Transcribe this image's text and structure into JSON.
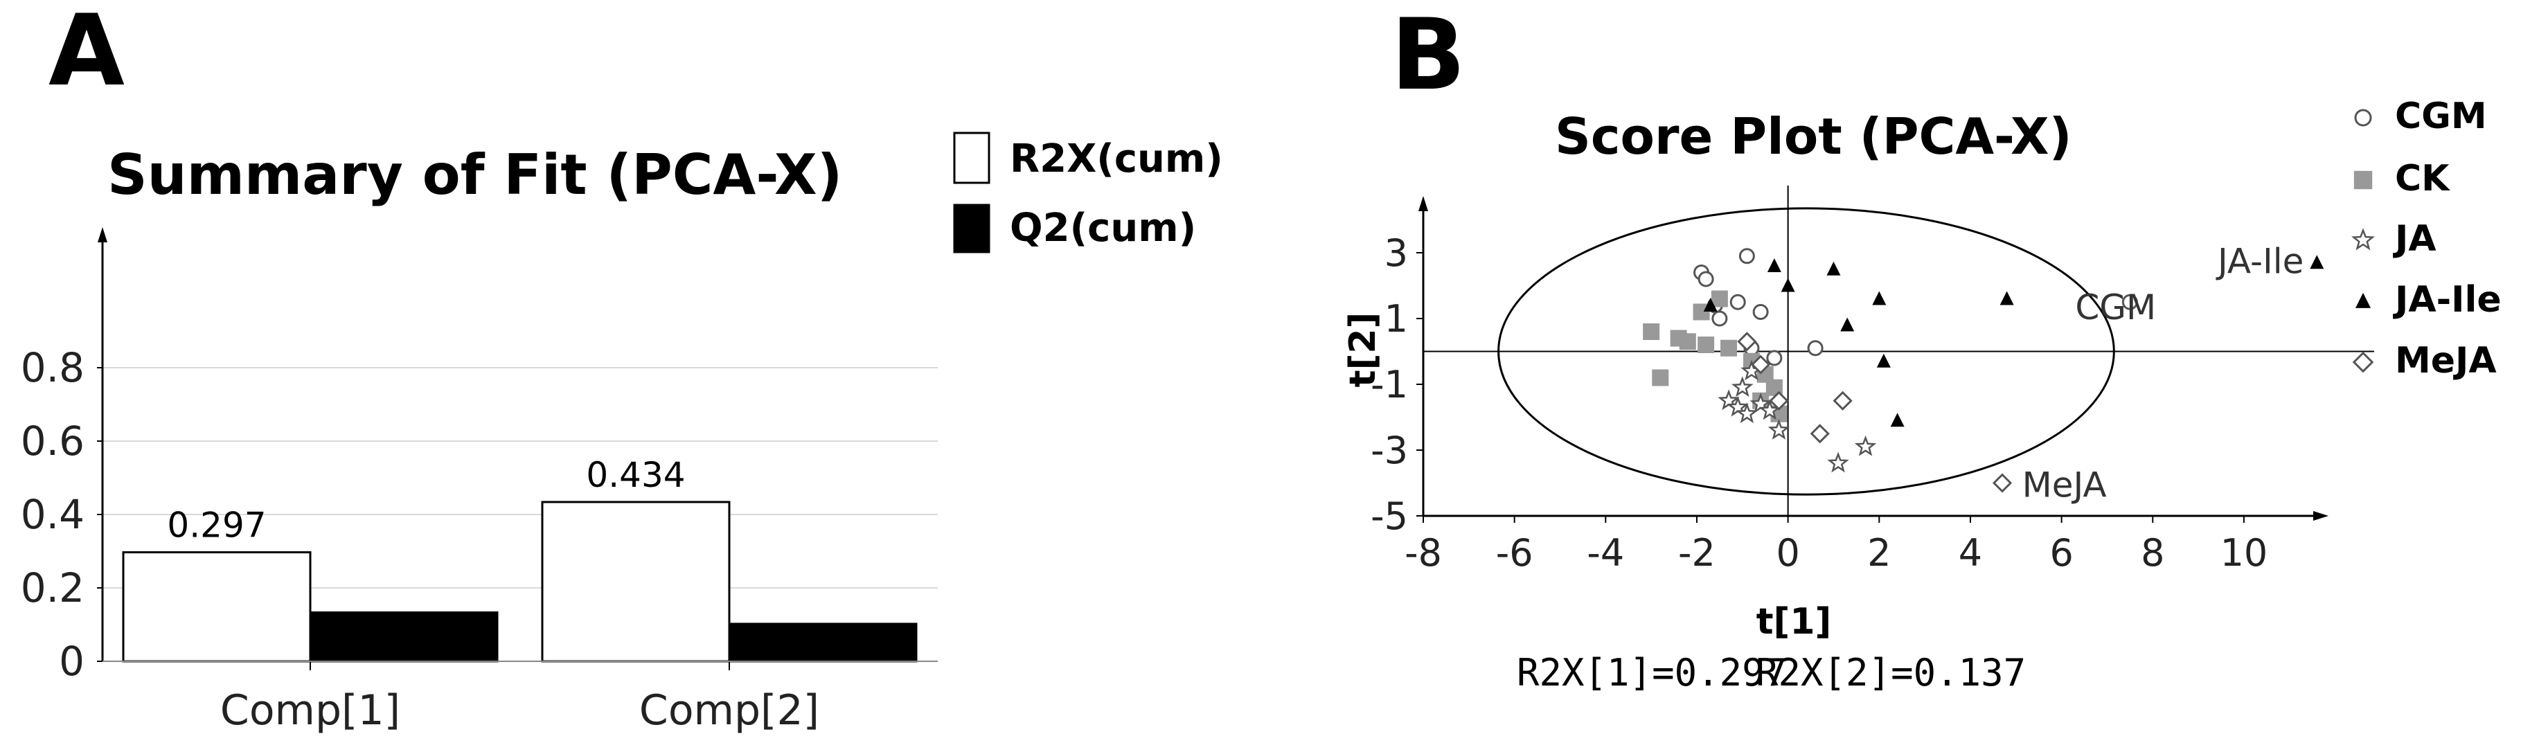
{
  "panels": {
    "a": {
      "letter": "A"
    },
    "b": {
      "letter": "B"
    }
  },
  "chart_data": [
    {
      "type": "bar",
      "title": "Summary of Fit (PCA-X)",
      "categories": [
        "Comp[1]",
        "Comp[2]"
      ],
      "series": [
        {
          "name": "R2X(cum)",
          "values": [
            0.297,
            0.434
          ],
          "color": "#ffffff"
        },
        {
          "name": "Q2(cum)",
          "values": [
            0.133,
            0.102
          ],
          "color": "#000000"
        }
      ],
      "data_labels": [
        "0.297",
        "0.434"
      ],
      "ylim": [
        0,
        1.0
      ],
      "yticks": [
        "0",
        "0.2",
        "0.4",
        "0.6",
        "0.8"
      ],
      "xlabel": "",
      "ylabel": "",
      "grid": "horizontal",
      "legend": "top-right"
    },
    {
      "type": "scatter",
      "title": "Score Plot (PCA-X)",
      "xlabel": "t[1]",
      "ylabel": "t[2]",
      "xlim": [
        -8,
        12
      ],
      "ylim": [
        -5,
        5
      ],
      "xticks": [
        "-8",
        "-6",
        "-4",
        "-2",
        "0",
        "2",
        "4",
        "6",
        "8",
        "10"
      ],
      "yticks": [
        "3",
        "1",
        "-1",
        "-3",
        "-5"
      ],
      "grid": "none",
      "legend": "right",
      "ellipse": {
        "cx": 0.4,
        "cy": 0,
        "rx": 6.75,
        "ry": 4.35
      },
      "footer": [
        "R2X[1]=0.297",
        "R2X[2]=0.137"
      ],
      "annotations": [
        {
          "text": "JA-Ile",
          "x": 11.8,
          "y": 2.8
        },
        {
          "text": "CGM",
          "x": 7.6,
          "y": 1.4
        },
        {
          "text": "MeJA",
          "x": 4.8,
          "y": -4.0
        }
      ],
      "series": [
        {
          "name": "CGM",
          "marker": "circle",
          "color": "#555555",
          "points": [
            [
              -1.9,
              2.4
            ],
            [
              -1.8,
              2.2
            ],
            [
              -0.9,
              2.9
            ],
            [
              -1.6,
              1.4
            ],
            [
              -1.5,
              1.0
            ],
            [
              -1.1,
              1.5
            ],
            [
              -0.6,
              1.2
            ],
            [
              -0.8,
              0.1
            ],
            [
              -0.3,
              -0.2
            ],
            [
              0.6,
              0.1
            ],
            [
              7.5,
              1.5
            ]
          ]
        },
        {
          "name": "CK",
          "marker": "square",
          "color": "#999999",
          "points": [
            [
              -3.0,
              0.6
            ],
            [
              -2.8,
              -0.8
            ],
            [
              -2.4,
              0.4
            ],
            [
              -2.2,
              0.3
            ],
            [
              -1.9,
              1.2
            ],
            [
              -1.5,
              1.6
            ],
            [
              -1.3,
              0.1
            ],
            [
              -0.8,
              -0.3
            ],
            [
              -0.5,
              -0.7
            ],
            [
              -0.3,
              -1.1
            ],
            [
              -0.6,
              -1.5
            ],
            [
              -0.2,
              -1.9
            ],
            [
              -1.8,
              0.2
            ]
          ]
        },
        {
          "name": "JA",
          "marker": "star",
          "color": "#555555",
          "points": [
            [
              -1.0,
              -1.1
            ],
            [
              -1.3,
              -1.5
            ],
            [
              -1.1,
              -1.7
            ],
            [
              -0.9,
              -1.9
            ],
            [
              -0.6,
              -1.6
            ],
            [
              -0.4,
              -1.8
            ],
            [
              -0.2,
              -2.4
            ],
            [
              1.1,
              -3.4
            ],
            [
              1.7,
              -2.9
            ],
            [
              -0.8,
              -0.6
            ]
          ]
        },
        {
          "name": "JA-Ile",
          "marker": "triangle",
          "color": "#000000",
          "points": [
            [
              -0.3,
              2.6
            ],
            [
              0.0,
              2.0
            ],
            [
              -1.7,
              1.4
            ],
            [
              1.0,
              2.5
            ],
            [
              2.0,
              1.6
            ],
            [
              1.3,
              0.8
            ],
            [
              2.1,
              -0.3
            ],
            [
              2.4,
              -2.1
            ],
            [
              4.8,
              1.6
            ],
            [
              11.6,
              2.7
            ]
          ]
        },
        {
          "name": "MeJA",
          "marker": "diamond",
          "color": "#555555",
          "points": [
            [
              -0.9,
              0.3
            ],
            [
              -0.6,
              -0.4
            ],
            [
              -0.2,
              -1.5
            ],
            [
              1.2,
              -1.5
            ],
            [
              0.7,
              -2.5
            ],
            [
              4.7,
              -4.0
            ]
          ]
        }
      ]
    }
  ]
}
